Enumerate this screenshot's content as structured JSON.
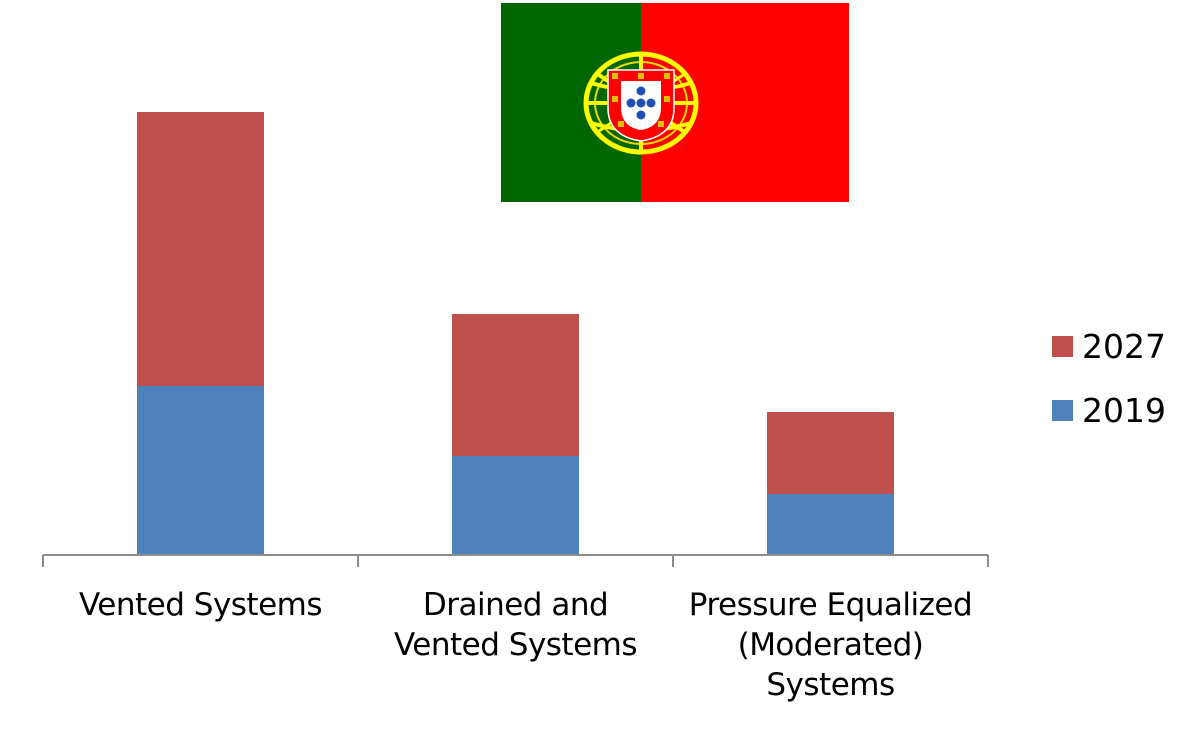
{
  "chart_data": {
    "type": "bar",
    "stacked": true,
    "title": "",
    "xlabel": "",
    "ylabel": "",
    "categories": [
      "Vented Systems",
      "Drained and Vented Systems",
      "Pressure Equalized (Moderated) Systems"
    ],
    "category_lines": [
      [
        "Vented Systems"
      ],
      [
        "Drained and",
        "Vented Systems"
      ],
      [
        "Pressure Equalized",
        "(Moderated)",
        "Systems"
      ]
    ],
    "series": [
      {
        "name": "2019",
        "color": "#4f81bd",
        "values": [
          169,
          99,
          61
        ]
      },
      {
        "name": "2027",
        "color": "#c0504d",
        "values": [
          274,
          142,
          82
        ]
      }
    ],
    "ylim": [
      0,
      460
    ],
    "grid": false,
    "y_axis_visible": false,
    "legend_position": "right",
    "legend": [
      "2027",
      "2019"
    ]
  },
  "image": {
    "flag": "portugal-flag",
    "colors": {
      "green": "#006600",
      "red": "#ff0000",
      "yellow": "#ffff00"
    }
  }
}
